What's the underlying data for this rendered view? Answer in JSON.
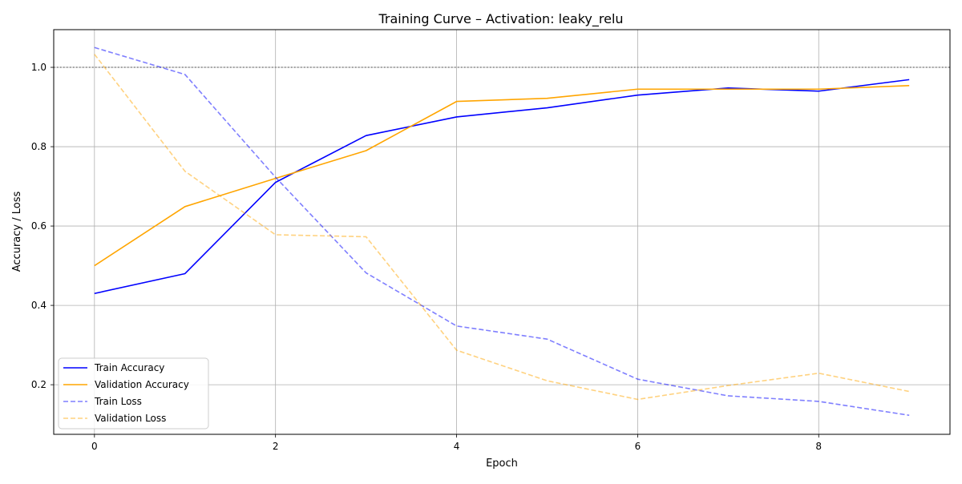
{
  "chart_data": {
    "type": "line",
    "title": "Training Curve – Activation: leaky_relu",
    "xlabel": "Epoch",
    "ylabel": "Accuracy / Loss",
    "xlim": [
      -0.45,
      9.45
    ],
    "ylim": [
      0.075,
      1.095
    ],
    "xticks": [
      0,
      2,
      4,
      6,
      8
    ],
    "yticks": [
      0.2,
      0.4,
      0.6,
      0.8,
      1.0
    ],
    "xtick_labels": [
      "0",
      "2",
      "4",
      "6",
      "8"
    ],
    "ytick_labels": [
      "0.2",
      "0.4",
      "0.6",
      "0.8",
      "1.0"
    ],
    "grid": true,
    "legend_position": "lower-left",
    "reference_line": {
      "y": 1.0,
      "color": "#808080",
      "style": "dotted"
    },
    "x": [
      0,
      1,
      2,
      3,
      4,
      5,
      6,
      7,
      8,
      9
    ],
    "series": [
      {
        "name": "Train Accuracy",
        "color": "#0000ff",
        "style": "solid",
        "opacity": 1,
        "values": [
          0.43,
          0.48,
          0.71,
          0.828,
          0.875,
          0.898,
          0.93,
          0.948,
          0.94,
          0.969
        ]
      },
      {
        "name": "Validation Accuracy",
        "color": "#ffa500",
        "style": "solid",
        "opacity": 1,
        "values": [
          0.5,
          0.649,
          0.72,
          0.79,
          0.914,
          0.922,
          0.945,
          0.945,
          0.945,
          0.954
        ]
      },
      {
        "name": "Train Loss",
        "color": "#0000ff",
        "style": "dashed",
        "opacity": 0.5,
        "values": [
          1.05,
          0.982,
          0.723,
          0.482,
          0.348,
          0.315,
          0.214,
          0.172,
          0.158,
          0.123
        ]
      },
      {
        "name": "Validation Loss",
        "color": "#ffa500",
        "style": "dashed",
        "opacity": 0.5,
        "values": [
          1.033,
          0.738,
          0.578,
          0.573,
          0.287,
          0.21,
          0.163,
          0.198,
          0.229,
          0.183
        ]
      }
    ]
  }
}
